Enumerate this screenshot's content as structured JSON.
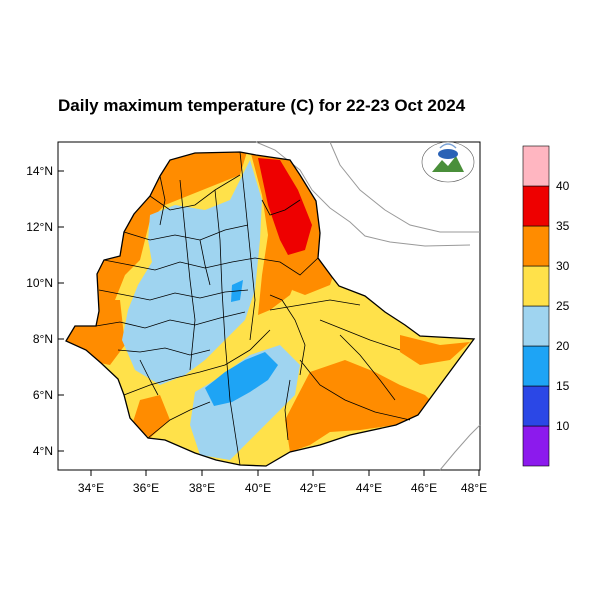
{
  "title": "Daily maximum temperature (C) for 22-23 Oct 2024",
  "map": {
    "lat_ticks": [
      "4°N",
      "6°N",
      "8°N",
      "10°N",
      "12°N",
      "14°N"
    ],
    "lon_ticks": [
      "34°E",
      "36°E",
      "38°E",
      "40°E",
      "42°E",
      "44°E",
      "46°E",
      "48°E"
    ],
    "lon_range": [
      33,
      48.2
    ],
    "lat_range": [
      3.2,
      15
    ],
    "region": "Ethiopia",
    "logo_icon": "ethiopian-meteorology-institute-logo"
  },
  "colorbar": {
    "labels": [
      "10",
      "15",
      "20",
      "25",
      "30",
      "35",
      "40"
    ],
    "colors": [
      "#8c1aed",
      "#2b47e6",
      "#1ea4f5",
      "#9fd4f0",
      "#ffe14a",
      "#ff8c00",
      "#ee0000",
      "#ffb6c1"
    ]
  }
}
